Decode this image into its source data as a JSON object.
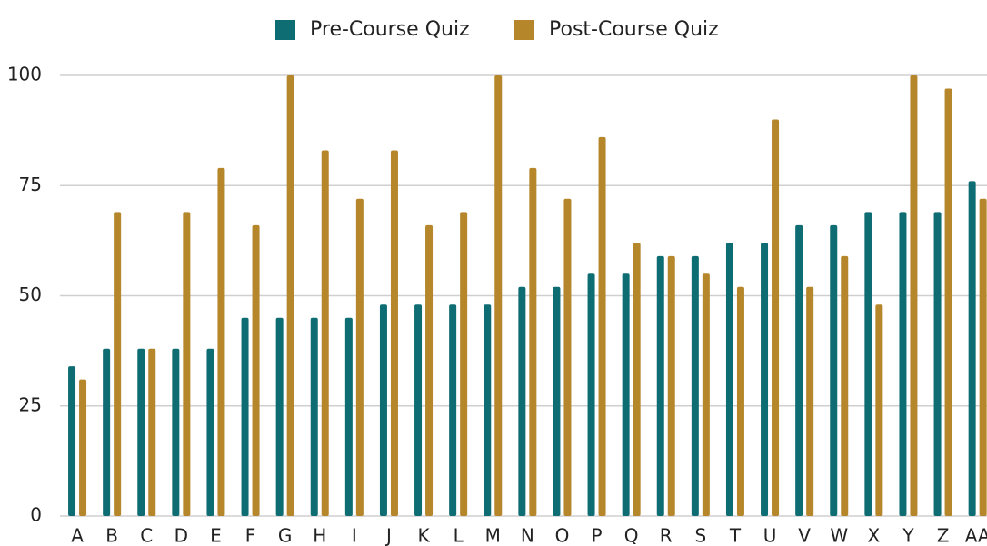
{
  "chart_data": {
    "type": "bar",
    "categories": [
      "A",
      "B",
      "C",
      "D",
      "E",
      "F",
      "G",
      "H",
      "I",
      "J",
      "K",
      "L",
      "M",
      "N",
      "O",
      "P",
      "Q",
      "R",
      "S",
      "T",
      "U",
      "V",
      "W",
      "X",
      "Y",
      "Z",
      "AA"
    ],
    "series": [
      {
        "name": "Pre-Course Quiz",
        "color": "#0e6d73",
        "values": [
          34,
          38,
          38,
          38,
          38,
          45,
          45,
          45,
          45,
          48,
          48,
          48,
          48,
          52,
          52,
          55,
          55,
          59,
          59,
          62,
          62,
          66,
          66,
          69,
          69,
          69,
          76
        ]
      },
      {
        "name": "Post-Course Quiz",
        "color": "#b5862a",
        "values": [
          31,
          69,
          38,
          69,
          79,
          66,
          100,
          83,
          72,
          83,
          66,
          69,
          100,
          79,
          72,
          86,
          62,
          59,
          55,
          52,
          90,
          52,
          59,
          48,
          100,
          97,
          72
        ]
      }
    ],
    "ylim": [
      0,
      100
    ],
    "yticks": [
      0,
      25,
      50,
      75,
      100
    ],
    "grid": true,
    "legend": "top"
  }
}
